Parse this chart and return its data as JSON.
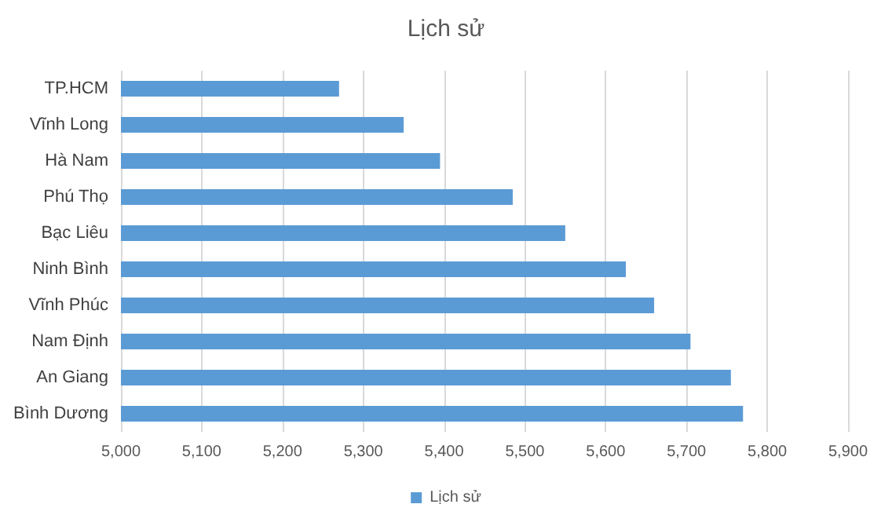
{
  "chart_data": {
    "type": "bar",
    "orientation": "horizontal",
    "title": "Lịch sử",
    "categories": [
      "TP.HCM",
      "Vĩnh Long",
      "Hà Nam",
      "Phú Thọ",
      "Bạc Liêu",
      "Ninh Bình",
      "Vĩnh Phúc",
      "Nam Định",
      "An Giang",
      "Bình Dương"
    ],
    "series": [
      {
        "name": "Lịch sử",
        "color": "#5b9bd5",
        "values": [
          5270,
          5350,
          5395,
          5485,
          5550,
          5625,
          5660,
          5705,
          5755,
          5770
        ]
      }
    ],
    "xlim": [
      5000,
      5900
    ],
    "xticks": [
      {
        "value": 5000,
        "label": "5,000"
      },
      {
        "value": 5100,
        "label": "5,100"
      },
      {
        "value": 5200,
        "label": "5,200"
      },
      {
        "value": 5300,
        "label": "5,300"
      },
      {
        "value": 5400,
        "label": "5,400"
      },
      {
        "value": 5500,
        "label": "5,500"
      },
      {
        "value": 5600,
        "label": "5,600"
      },
      {
        "value": 5700,
        "label": "5,700"
      },
      {
        "value": 5800,
        "label": "5,800"
      },
      {
        "value": 5900,
        "label": "5,900"
      }
    ],
    "grid": "x",
    "legend": "bottom"
  }
}
